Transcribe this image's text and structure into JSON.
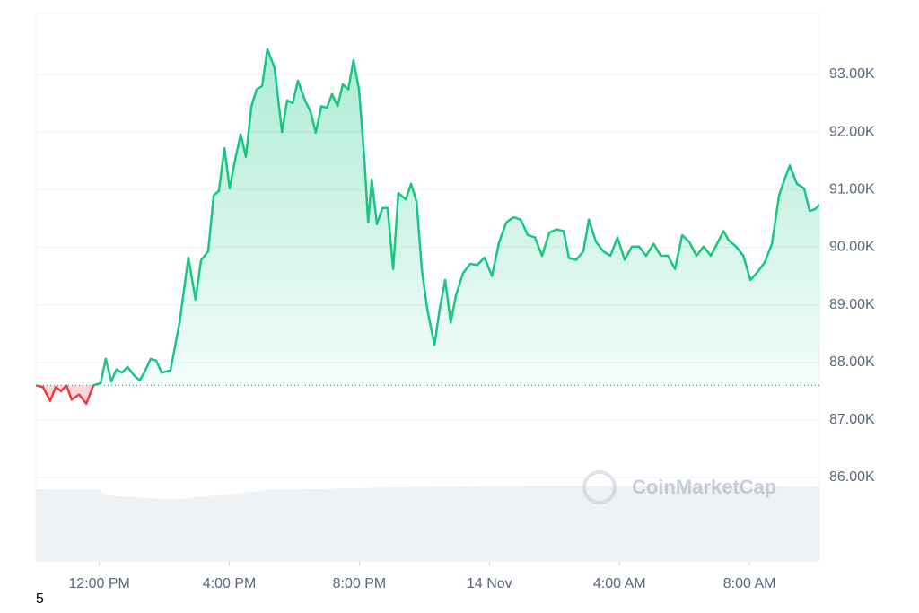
{
  "chart_data": {
    "type": "line",
    "color": "#16c784",
    "below_color": "#ea3943",
    "baseline": 87.6,
    "watermark": "CoinMarketCap",
    "footnote": "5",
    "grid": true,
    "xlim": [
      10.05,
      34.15
    ],
    "xticks": [
      {
        "value": 12,
        "label": "12:00 PM"
      },
      {
        "value": 16,
        "label": "4:00 PM"
      },
      {
        "value": 20,
        "label": "8:00 PM"
      },
      {
        "value": 24,
        "label": "14 Nov"
      },
      {
        "value": 28,
        "label": "4:00 AM"
      },
      {
        "value": 32,
        "label": "8:00 AM"
      }
    ],
    "ylim": [
      84.55,
      94.06
    ],
    "yticks": [
      {
        "value": 86,
        "label": "86.00K"
      },
      {
        "value": 87,
        "label": "87.00K"
      },
      {
        "value": 88,
        "label": "88.00K"
      },
      {
        "value": 89,
        "label": "89.00K"
      },
      {
        "value": 90,
        "label": "90.00K"
      },
      {
        "value": 91,
        "label": "91.00K"
      },
      {
        "value": 92,
        "label": "92.00K"
      },
      {
        "value": 93,
        "label": "93.00K"
      }
    ],
    "x": [
      10.05,
      10.27,
      10.49,
      10.66,
      10.82,
      10.99,
      11.15,
      11.38,
      11.6,
      11.82,
      12.04,
      12.2,
      12.37,
      12.53,
      12.7,
      12.87,
      13.09,
      13.25,
      13.42,
      13.58,
      13.75,
      13.92,
      14.19,
      14.47,
      14.74,
      14.96,
      15.13,
      15.35,
      15.52,
      15.68,
      15.85,
      16.01,
      16.18,
      16.35,
      16.51,
      16.68,
      16.84,
      17.01,
      17.17,
      17.39,
      17.62,
      17.78,
      17.95,
      18.11,
      18.33,
      18.5,
      18.66,
      18.83,
      19.0,
      19.16,
      19.33,
      19.49,
      19.66,
      19.82,
      19.99,
      20.16,
      20.27,
      20.38,
      20.54,
      20.71,
      20.87,
      21.04,
      21.2,
      21.43,
      21.59,
      21.76,
      21.92,
      22.09,
      22.31,
      22.47,
      22.64,
      22.81,
      22.97,
      23.19,
      23.41,
      23.63,
      23.85,
      24.08,
      24.3,
      24.52,
      24.74,
      24.96,
      25.18,
      25.4,
      25.62,
      25.84,
      26.06,
      26.28,
      26.45,
      26.67,
      26.89,
      27.06,
      27.28,
      27.5,
      27.72,
      27.94,
      28.16,
      28.38,
      28.6,
      28.82,
      29.05,
      29.27,
      29.49,
      29.71,
      29.93,
      30.15,
      30.37,
      30.59,
      30.81,
      31.03,
      31.2,
      31.36,
      31.59,
      31.81,
      32.03,
      32.25,
      32.47,
      32.69,
      32.91,
      33.08,
      33.24,
      33.46,
      33.68,
      33.85,
      34.02,
      34.15
    ],
    "values": [
      87.6,
      87.57,
      87.33,
      87.57,
      87.5,
      87.6,
      87.35,
      87.44,
      87.28,
      87.6,
      87.64,
      88.06,
      87.67,
      87.88,
      87.82,
      87.92,
      87.76,
      87.69,
      87.86,
      88.06,
      88.03,
      87.82,
      87.86,
      88.69,
      89.82,
      89.09,
      89.77,
      89.93,
      90.9,
      90.98,
      91.72,
      91.02,
      91.52,
      91.96,
      91.57,
      92.45,
      92.74,
      92.8,
      93.44,
      93.12,
      92.0,
      92.55,
      92.5,
      92.89,
      92.55,
      92.35,
      91.99,
      92.45,
      92.42,
      92.66,
      92.45,
      92.83,
      92.74,
      93.25,
      92.74,
      91.49,
      90.43,
      91.18,
      90.4,
      90.68,
      90.68,
      89.62,
      90.94,
      90.83,
      91.1,
      90.79,
      89.62,
      88.92,
      88.3,
      88.92,
      89.43,
      88.69,
      89.16,
      89.55,
      89.71,
      89.69,
      89.82,
      89.5,
      90.09,
      90.43,
      90.52,
      90.48,
      90.21,
      90.17,
      89.85,
      90.25,
      90.31,
      90.28,
      89.81,
      89.78,
      89.93,
      90.48,
      90.09,
      89.93,
      89.85,
      90.17,
      89.78,
      90.01,
      90.01,
      89.85,
      90.06,
      89.85,
      89.85,
      89.62,
      90.21,
      90.09,
      89.85,
      90.01,
      89.85,
      90.09,
      90.28,
      90.12,
      90.01,
      89.85,
      89.43,
      89.57,
      89.74,
      90.06,
      90.9,
      91.18,
      91.42,
      91.1,
      91.02,
      90.63,
      90.66,
      90.74
    ]
  }
}
